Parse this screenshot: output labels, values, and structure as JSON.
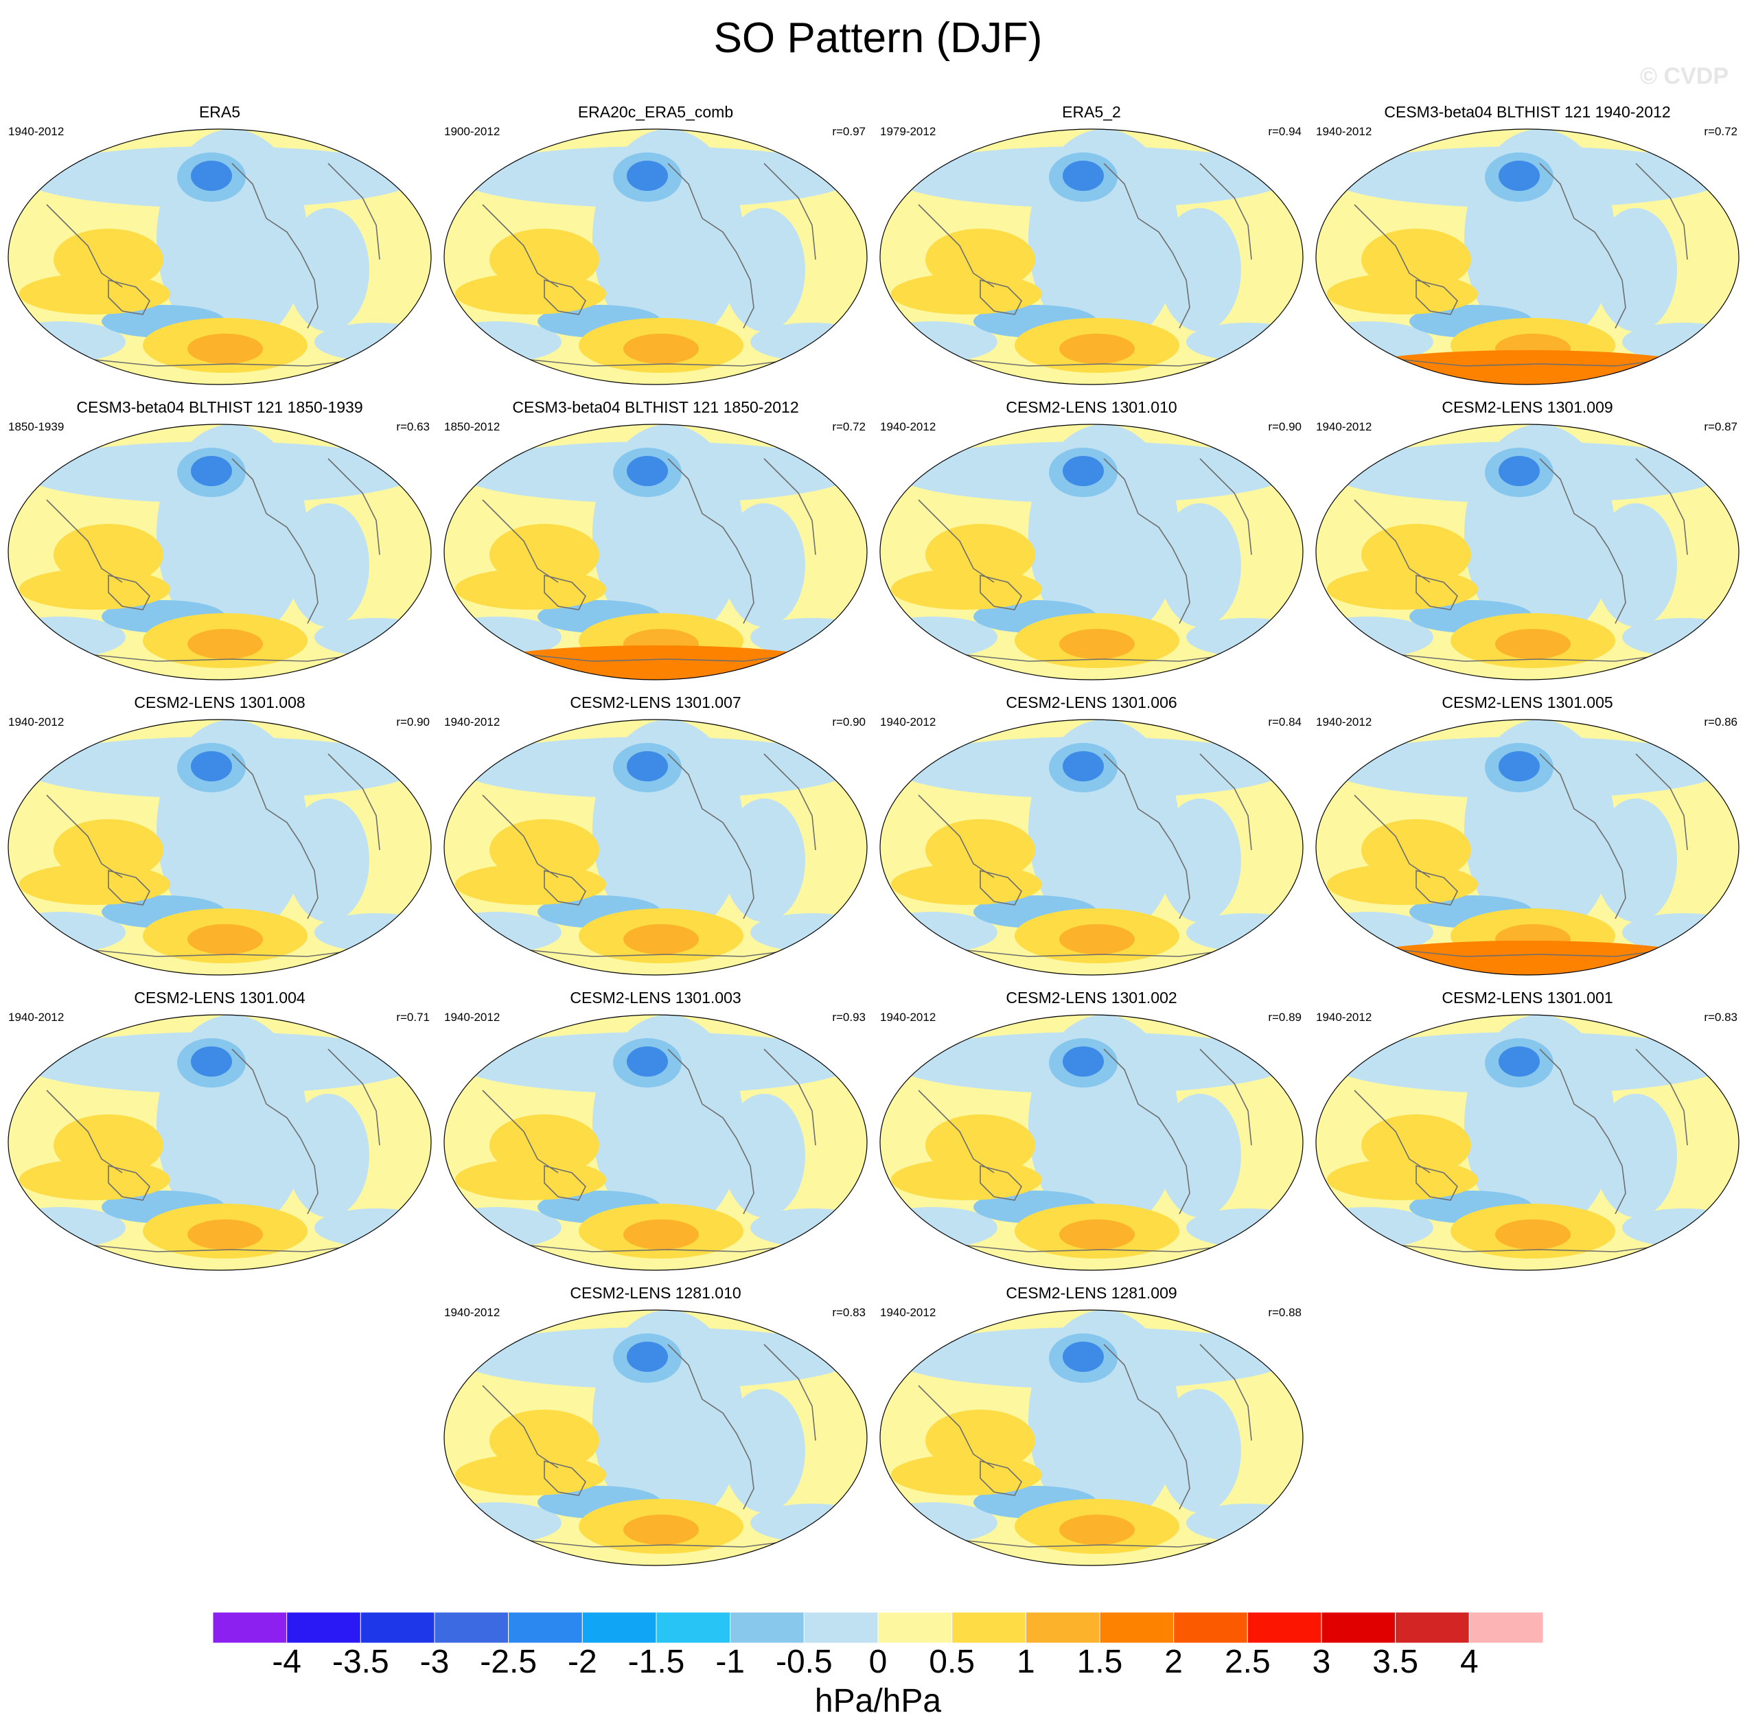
{
  "figure": {
    "title": "SO Pattern (DJF)",
    "credit": "© CVDP",
    "units": "hPa/hPa"
  },
  "colors": {
    "map_base": "#fdf7a0",
    "weak_negative": "#bfe1f2",
    "negative": "#87c7ee",
    "strong_negative": "#3d8be6",
    "positive": "#fddc45",
    "strong_positive": "#fcb22a",
    "very_strong_positive": "#fc8200",
    "coastline": "#6e6e6e"
  },
  "colorbar": {
    "ticks": [
      "-4",
      "-3.5",
      "-3",
      "-2.5",
      "-2",
      "-1.5",
      "-1",
      "-0.5",
      "0",
      "0.5",
      "1",
      "1.5",
      "2",
      "2.5",
      "3",
      "3.5",
      "4"
    ],
    "colors": [
      "#8b20f0",
      "#2a18f5",
      "#1e37e8",
      "#3b6ae2",
      "#2a88f0",
      "#10a6f5",
      "#28c4f5",
      "#88c8ec",
      "#bfe1f2",
      "#fdf7a0",
      "#fddc45",
      "#fcb22a",
      "#fc8200",
      "#fc5a00",
      "#fc1500",
      "#e00000",
      "#d42525",
      "#fcb4b4"
    ]
  },
  "panels": [
    {
      "title": "ERA5",
      "period": "1940-2012",
      "corr": ""
    },
    {
      "title": "ERA20c_ERA5_comb",
      "period": "1900-2012",
      "corr": "r=0.97"
    },
    {
      "title": "ERA5_2",
      "period": "1979-2012",
      "corr": "r=0.94"
    },
    {
      "title": "CESM3-beta04 BLTHIST 121 1940-2012",
      "period": "1940-2012",
      "corr": "r=0.72"
    },
    {
      "title": "CESM3-beta04 BLTHIST 121 1850-1939",
      "period": "1850-1939",
      "corr": "r=0.63"
    },
    {
      "title": "CESM3-beta04 BLTHIST 121 1850-2012",
      "period": "1850-2012",
      "corr": "r=0.72"
    },
    {
      "title": "CESM2-LENS 1301.010",
      "period": "1940-2012",
      "corr": "r=0.90"
    },
    {
      "title": "CESM2-LENS 1301.009",
      "period": "1940-2012",
      "corr": "r=0.87"
    },
    {
      "title": "CESM2-LENS 1301.008",
      "period": "1940-2012",
      "corr": "r=0.90"
    },
    {
      "title": "CESM2-LENS 1301.007",
      "period": "1940-2012",
      "corr": "r=0.90"
    },
    {
      "title": "CESM2-LENS 1301.006",
      "period": "1940-2012",
      "corr": "r=0.84"
    },
    {
      "title": "CESM2-LENS 1301.005",
      "period": "1940-2012",
      "corr": "r=0.86"
    },
    {
      "title": "CESM2-LENS 1301.004",
      "period": "1940-2012",
      "corr": "r=0.71"
    },
    {
      "title": "CESM2-LENS 1301.003",
      "period": "1940-2012",
      "corr": "r=0.93"
    },
    {
      "title": "CESM2-LENS 1301.002",
      "period": "1940-2012",
      "corr": "r=0.89"
    },
    {
      "title": "CESM2-LENS 1301.001",
      "period": "1940-2012",
      "corr": "r=0.83"
    },
    {
      "title": "CESM2-LENS 1281.010",
      "period": "1940-2012",
      "corr": "r=0.83"
    },
    {
      "title": "CESM2-LENS 1281.009",
      "period": "1940-2012",
      "corr": "r=0.88"
    }
  ]
}
